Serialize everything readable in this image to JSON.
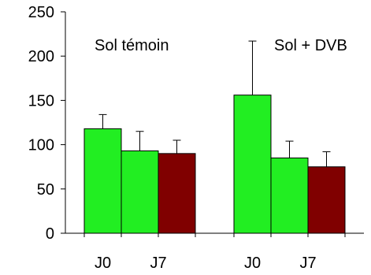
{
  "chart_data": {
    "type": "bar",
    "ylim": [
      0,
      250
    ],
    "yticks": [
      0,
      50,
      100,
      150,
      200,
      250
    ],
    "grid": false,
    "groups": [
      {
        "label": "Sol témoin",
        "bars": [
          {
            "value": 118,
            "error": 16,
            "color": "#22ee22"
          },
          {
            "value": 93,
            "error": 22,
            "color": "#22ee22"
          },
          {
            "value": 90,
            "error": 15,
            "color": "#800000"
          }
        ]
      },
      {
        "label": "Sol + DVB",
        "bars": [
          {
            "value": 156,
            "error": 61,
            "color": "#22ee22"
          },
          {
            "value": 85,
            "error": 19,
            "color": "#22ee22"
          },
          {
            "value": 75,
            "error": 17,
            "color": "#800000"
          }
        ]
      }
    ],
    "category_labels": [
      "J0",
      "J7",
      "J0",
      "J7"
    ]
  }
}
